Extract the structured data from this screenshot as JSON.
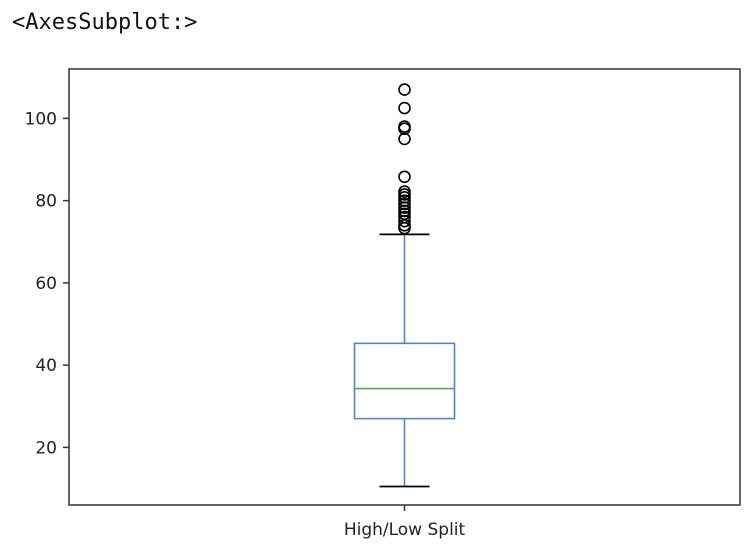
{
  "output_repr": "<AxesSubplot:>",
  "chart_data": {
    "type": "box",
    "categories": [
      "High/Low Split"
    ],
    "ylim": [
      6,
      112
    ],
    "yticks": [
      20,
      40,
      60,
      80,
      100
    ],
    "ytick_labels": [
      "20",
      "40",
      "60",
      "80",
      "100"
    ],
    "grid": false,
    "boxes": [
      {
        "label": "High/Low Split",
        "whisker_low": 10.5,
        "q1": 27,
        "median": 34.3,
        "q3": 45.3,
        "whisker_high": 71.8,
        "outliers": [
          107,
          102.5,
          98,
          97.5,
          95,
          85.8,
          82.2,
          81.5,
          80.8,
          80,
          79.2,
          78.3,
          77.5,
          76.8,
          76,
          75,
          74,
          73.3
        ]
      }
    ],
    "colors": {
      "box": "#4f86c6",
      "median": "#5aa844",
      "whisker_cap": "#000000",
      "outlier": "#000000"
    }
  }
}
